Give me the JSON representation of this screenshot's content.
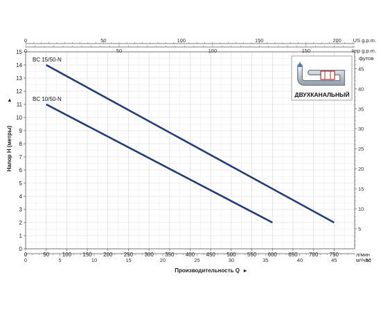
{
  "chart_data": {
    "type": "line",
    "series": [
      {
        "name": "BC 15/50-N",
        "x": [
          50,
          750
        ],
        "y": [
          14,
          2
        ],
        "color": "#1f3d7a"
      },
      {
        "name": "BC 10/50-N",
        "x": [
          50,
          600
        ],
        "y": [
          11,
          2
        ],
        "color": "#1f3d7a"
      }
    ],
    "primary_x": {
      "label": "Производительность Q",
      "unit": "л/мин",
      "range": [
        0,
        800
      ],
      "ticks": [
        "0",
        "50",
        "100",
        "150",
        "200",
        "250",
        "300",
        "350",
        "400",
        "450",
        "500",
        "550",
        "600",
        "650",
        "700",
        "750"
      ]
    },
    "secondary_x_m3": {
      "unit": "м³/час",
      "range": [
        0,
        48
      ],
      "ticks": [
        "0",
        "5",
        "10",
        "15",
        "20",
        "25",
        "30",
        "35",
        "40",
        "45",
        "50"
      ]
    },
    "top_x_us": {
      "unit": "US g.p.m.",
      "range": [
        0,
        211.3
      ],
      "ticks": [
        "0",
        "50",
        "100",
        "150",
        "200"
      ]
    },
    "top_x_imp": {
      "unit": "Imp g.p.m.",
      "range": [
        0,
        176
      ],
      "ticks": [
        "0",
        "50",
        "100",
        "150"
      ]
    },
    "primary_y": {
      "label": "Напор H (метры)",
      "range": [
        0,
        15
      ],
      "ticks": [
        "0",
        "1",
        "2",
        "3",
        "4",
        "5",
        "6",
        "7",
        "8",
        "9",
        "10",
        "11",
        "12",
        "13",
        "14",
        "15"
      ]
    },
    "secondary_y_ft": {
      "unit": "футов",
      "range": [
        0,
        49.2
      ],
      "ticks": [
        "5",
        "10",
        "15",
        "20",
        "25",
        "30",
        "35",
        "40",
        "45"
      ]
    },
    "inset": {
      "label": "ДВУХКАНАЛЬНЫЙ"
    },
    "grid": true
  }
}
